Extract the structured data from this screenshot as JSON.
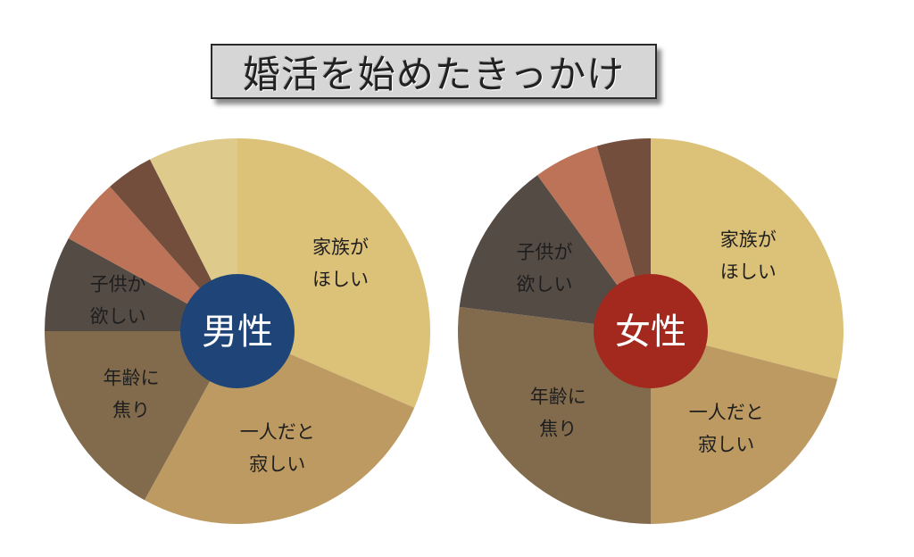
{
  "title": "婚活を始めたきっかけ",
  "colors": {
    "slice_1": "#dcc179",
    "slice_2": "#bd9a62",
    "slice_3": "#826b4c",
    "slice_4": "#544b45",
    "slice_5": "#bd7358",
    "slice_6": "#734e3c",
    "slice_7": "#decb8b",
    "male_center": "#1e4478",
    "female_center": "#a3291e"
  },
  "chart_data": [
    {
      "type": "pie",
      "center_label": "男性",
      "center_color": "#1e4478",
      "slices": [
        {
          "label": [
            "家族が",
            "ほしい"
          ],
          "value": 31.5,
          "color": "#dcc179"
        },
        {
          "label": [
            "一人だと",
            "寂しい"
          ],
          "value": 26.5,
          "color": "#bd9a62"
        },
        {
          "label": [
            "年齢に",
            "焦り"
          ],
          "value": 17.0,
          "color": "#826b4c"
        },
        {
          "label": [
            "子供が",
            "欲しい"
          ],
          "value": 8.0,
          "color": "#544b45"
        },
        {
          "label": [],
          "value": 5.5,
          "color": "#bd7358"
        },
        {
          "label": [],
          "value": 4.0,
          "color": "#734e3c"
        },
        {
          "label": [],
          "value": 7.5,
          "color": "#decb8b"
        }
      ]
    },
    {
      "type": "pie",
      "center_label": "女性",
      "center_color": "#a3291e",
      "slices": [
        {
          "label": [
            "家族が",
            "ほしい"
          ],
          "value": 29.0,
          "color": "#dcc179"
        },
        {
          "label": [
            "一人だと",
            "寂しい"
          ],
          "value": 21.0,
          "color": "#bd9a62"
        },
        {
          "label": [
            "年齢に",
            "焦り"
          ],
          "value": 27.0,
          "color": "#826b4c"
        },
        {
          "label": [
            "子供が",
            "欲しい"
          ],
          "value": 13.0,
          "color": "#544b45"
        },
        {
          "label": [],
          "value": 5.5,
          "color": "#bd7358"
        },
        {
          "label": [],
          "value": 4.5,
          "color": "#734e3c"
        }
      ]
    }
  ]
}
